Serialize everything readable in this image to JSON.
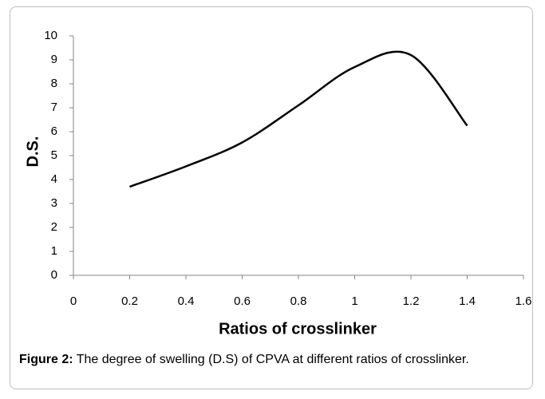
{
  "chart_data": {
    "type": "line",
    "x_label": "Ratios of crosslinker",
    "y_label": "D.S.",
    "x": [
      0.2,
      0.4,
      0.6,
      0.8,
      1.0,
      1.2,
      1.4
    ],
    "series": [
      {
        "color": "#000000",
        "values": [
          3.7,
          4.55,
          5.55,
          7.1,
          8.7,
          9.2,
          6.25
        ]
      }
    ],
    "xlim": [
      0,
      1.6
    ],
    "xticks": [
      0,
      0.2,
      0.4,
      0.6,
      0.8,
      1,
      1.2,
      1.4,
      1.6
    ],
    "ylim": [
      0,
      10
    ],
    "yticks": [
      0,
      1,
      2,
      3,
      4,
      5,
      6,
      7,
      8,
      9,
      10
    ],
    "grid": false,
    "smooth": true
  },
  "caption_label": "Figure 2:",
  "caption": "The degree of swelling (D.S) of CPVA at different ratios of crosslinker."
}
